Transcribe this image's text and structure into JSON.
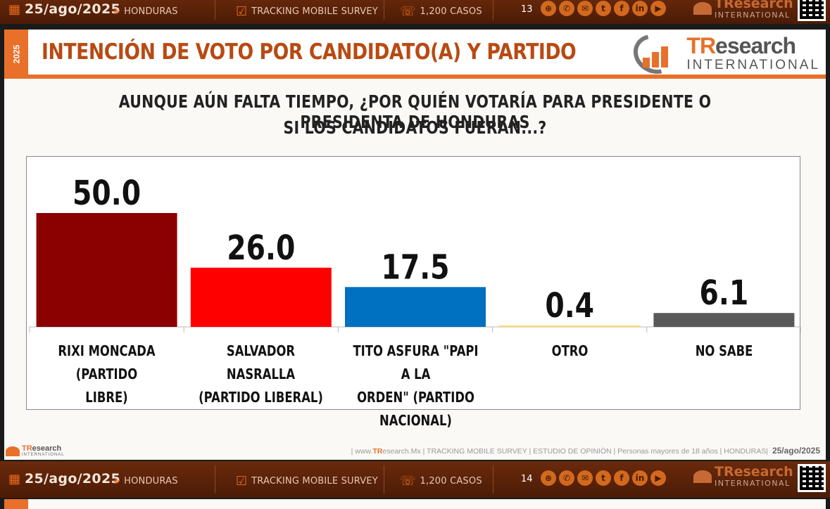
{
  "strip_top": {
    "date": "25/ago/2025",
    "country": "HONDURAS",
    "survey": "TRACKING MOBILE SURVEY",
    "cases": "1,200 CASOS",
    "page": "13",
    "logo_brand": "TResearch",
    "logo_sub": "INTERNATIONAL"
  },
  "strip_bottom": {
    "date": "25/ago/2025",
    "country": "HONDURAS",
    "survey": "TRACKING MOBILE SURVEY",
    "cases": "1,200 CASOS",
    "page": "14",
    "logo_brand": "TResearch",
    "logo_sub": "INTERNATIONAL"
  },
  "slide": {
    "year": "2025",
    "title": "INTENCIÓN DE VOTO POR CANDIDATO(A) Y PARTIDO",
    "logo_brand_part1": "TR",
    "logo_brand_part2": "esearch",
    "logo_sub": "INTERNATIONAL",
    "question_line1": "AUNQUE AÚN FALTA TIEMPO, ¿POR QUIÉN VOTARÍA PARA PRESIDENTE O PRESIDENTA DE HONDURAS",
    "question_line2": "SI LOS CANDIDATOS FUERAN...?",
    "footer_brand_part1": "TR",
    "footer_brand_part2": "esearch",
    "footer_sub": "INTERNATIONAL",
    "footer_pre": "| www.",
    "footer_tr": "TR",
    "footer_text": "esearch.Mx | TRACKING MOBILE SURVEY | ESTUDIO DE OPINIÓN | Personas mayores de 18 años | HONDURAS|",
    "footer_date": "25/ago/2025"
  },
  "colors": {
    "strip": "#4b1b06",
    "accent": "#e8702a",
    "title": "#b84a12"
  },
  "chart_data": {
    "type": "bar",
    "title": "",
    "xlabel": "",
    "ylabel": "",
    "ylim": [
      0,
      50
    ],
    "grid": false,
    "categories": [
      "RIXI MONCADA (PARTIDO LIBRE)",
      "SALVADOR NASRALLA (PARTIDO LIBERAL)",
      "TITO ASFURA \"PAPI A LA ORDEN\" (PARTIDO NACIONAL)",
      "OTRO",
      "NO SABE"
    ],
    "label_lines": [
      [
        "RIXI MONCADA (PARTIDO",
        "LIBRE)"
      ],
      [
        "SALVADOR NASRALLA",
        "(PARTIDO LIBERAL)"
      ],
      [
        "TITO ASFURA \"PAPI A LA",
        "ORDEN\" (PARTIDO",
        "NACIONAL)"
      ],
      [
        "OTRO"
      ],
      [
        "NO SABE"
      ]
    ],
    "values": [
      50.0,
      26.0,
      17.5,
      0.4,
      6.1
    ],
    "value_labels": [
      "50.0",
      "26.0",
      "17.5",
      "0.4",
      "6.1"
    ],
    "bar_colors": [
      "#8b0000",
      "#ff0000",
      "#0070c0",
      "#ffd966",
      "#595959"
    ]
  }
}
